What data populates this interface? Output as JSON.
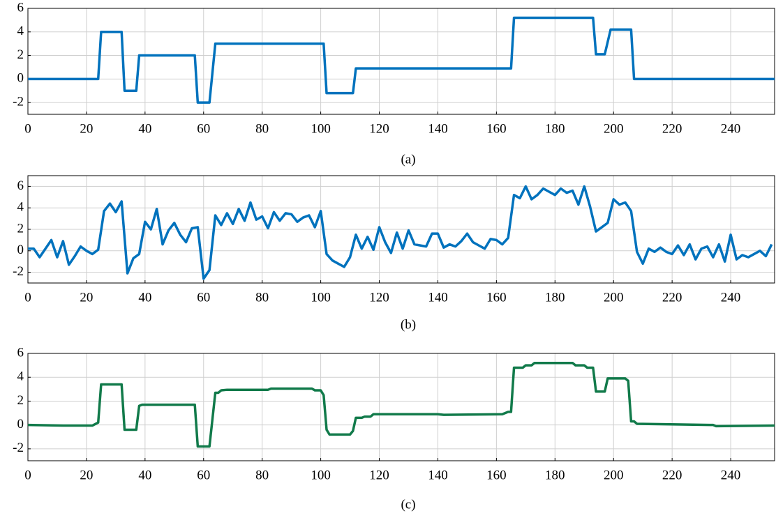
{
  "chart_data": [
    {
      "type": "line",
      "caption": "(a)",
      "color": "#0072bd",
      "x": [
        0,
        24,
        25,
        32,
        33,
        37,
        38,
        57,
        58,
        62,
        64,
        101,
        102,
        111,
        112,
        165,
        166,
        193,
        194,
        197,
        199,
        206,
        207,
        255
      ],
      "values": [
        0,
        0,
        4,
        4,
        -1,
        -1,
        2,
        2,
        -2,
        -2,
        3,
        3,
        -1.2,
        -1.2,
        0.9,
        0.9,
        5.2,
        5.2,
        2.1,
        2.1,
        4.2,
        4.2,
        0,
        0
      ],
      "xlim": [
        0,
        255
      ],
      "ylim": [
        -3,
        6
      ],
      "xticks": [
        0,
        20,
        40,
        60,
        80,
        100,
        120,
        140,
        160,
        180,
        200,
        220,
        240
      ],
      "yticks": [
        -2,
        0,
        2,
        4,
        6
      ],
      "grid": true
    },
    {
      "type": "line",
      "caption": "(b)",
      "color": "#0072bd",
      "x": [
        0,
        2,
        4,
        6,
        8,
        10,
        12,
        14,
        16,
        18,
        20,
        22,
        24,
        26,
        28,
        30,
        32,
        34,
        36,
        38,
        40,
        42,
        44,
        46,
        48,
        50,
        52,
        54,
        56,
        58,
        60,
        62,
        64,
        66,
        68,
        70,
        72,
        74,
        76,
        78,
        80,
        82,
        84,
        86,
        88,
        90,
        92,
        94,
        96,
        98,
        100,
        102,
        104,
        106,
        108,
        110,
        112,
        114,
        116,
        118,
        120,
        122,
        124,
        126,
        128,
        130,
        132,
        134,
        136,
        138,
        140,
        142,
        144,
        146,
        148,
        150,
        152,
        154,
        156,
        158,
        160,
        162,
        164,
        166,
        168,
        170,
        172,
        174,
        176,
        178,
        180,
        182,
        184,
        186,
        188,
        190,
        192,
        194,
        196,
        198,
        200,
        202,
        204,
        206,
        208,
        210,
        212,
        214,
        216,
        218,
        220,
        222,
        224,
        226,
        228,
        230,
        232,
        234,
        236,
        238,
        240,
        242,
        244,
        246,
        248,
        250,
        252,
        254
      ],
      "values": [
        0.2,
        0.2,
        -0.6,
        0.2,
        1.0,
        -0.6,
        0.9,
        -1.3,
        -0.5,
        0.4,
        0,
        -0.3,
        0.1,
        3.7,
        4.4,
        3.6,
        4.6,
        -2.1,
        -0.7,
        -0.3,
        2.7,
        2.0,
        3.9,
        0.6,
        1.9,
        2.6,
        1.5,
        0.8,
        2.1,
        2.2,
        -2.6,
        -1.8,
        3.3,
        2.4,
        3.5,
        2.5,
        3.9,
        2.8,
        4.5,
        2.9,
        3.2,
        2.1,
        3.6,
        2.8,
        3.5,
        3.4,
        2.7,
        3.1,
        3.3,
        2.2,
        3.7,
        -0.3,
        -0.9,
        -1.2,
        -1.5,
        -0.6,
        1.5,
        0.2,
        1.3,
        0.1,
        2.2,
        0.8,
        -0.2,
        1.7,
        0.2,
        1.9,
        0.6,
        0.5,
        0.4,
        1.6,
        1.6,
        0.3,
        0.6,
        0.4,
        0.9,
        1.6,
        0.8,
        0.5,
        0.2,
        1.1,
        1.0,
        0.6,
        1.2,
        5.2,
        4.9,
        6.0,
        4.8,
        5.2,
        5.8,
        5.5,
        5.2,
        5.8,
        5.4,
        5.6,
        4.3,
        6.0,
        4.1,
        1.8,
        2.2,
        2.6,
        4.8,
        4.3,
        4.5,
        3.7,
        -0.1,
        -1.2,
        0.2,
        -0.1,
        0.3,
        -0.1,
        -0.3,
        0.5,
        -0.4,
        0.6,
        -0.8,
        0.2,
        0.4,
        -0.6,
        0.6,
        -1.0,
        1.5,
        -0.8,
        -0.4,
        -0.6,
        -0.3,
        0.0,
        -0.5,
        0.6
      ],
      "xlim": [
        0,
        255
      ],
      "ylim": [
        -3,
        7
      ],
      "xticks": [
        0,
        20,
        40,
        60,
        80,
        100,
        120,
        140,
        160,
        180,
        200,
        220,
        240
      ],
      "yticks": [
        -2,
        0,
        2,
        4,
        6
      ],
      "grid": true
    },
    {
      "type": "line",
      "caption": "(c)",
      "color": "#117a4a",
      "x": [
        0,
        12,
        22,
        24,
        25,
        32,
        33,
        37,
        38,
        39,
        57,
        58,
        62,
        64,
        65,
        66,
        68,
        82,
        83,
        97,
        98,
        100,
        101,
        102,
        103,
        110,
        111,
        112,
        114,
        115,
        117,
        118,
        140,
        142,
        162,
        164,
        165,
        166,
        169,
        170,
        172,
        173,
        186,
        187,
        190,
        191,
        193,
        194,
        197,
        198,
        204,
        205,
        206,
        207,
        208,
        234,
        235,
        255
      ],
      "values": [
        0,
        -0.05,
        -0.05,
        0.2,
        3.4,
        3.4,
        -0.4,
        -0.4,
        1.6,
        1.7,
        1.7,
        -1.8,
        -1.8,
        2.7,
        2.7,
        2.9,
        2.95,
        2.95,
        3.05,
        3.05,
        2.9,
        2.9,
        2.5,
        -0.4,
        -0.8,
        -0.8,
        -0.5,
        0.6,
        0.6,
        0.7,
        0.7,
        0.9,
        0.9,
        0.85,
        0.9,
        1.1,
        1.1,
        4.8,
        4.8,
        5.0,
        5.0,
        5.2,
        5.2,
        5.0,
        5.0,
        4.8,
        4.8,
        2.8,
        2.8,
        3.9,
        3.9,
        3.7,
        0.3,
        0.3,
        0.1,
        0,
        -0.1,
        -0.05
      ],
      "xlim": [
        0,
        255
      ],
      "ylim": [
        -3,
        6
      ],
      "xticks": [
        0,
        20,
        40,
        60,
        80,
        100,
        120,
        140,
        160,
        180,
        200,
        220,
        240
      ],
      "yticks": [
        -2,
        0,
        2,
        4,
        6
      ],
      "grid": true
    }
  ]
}
